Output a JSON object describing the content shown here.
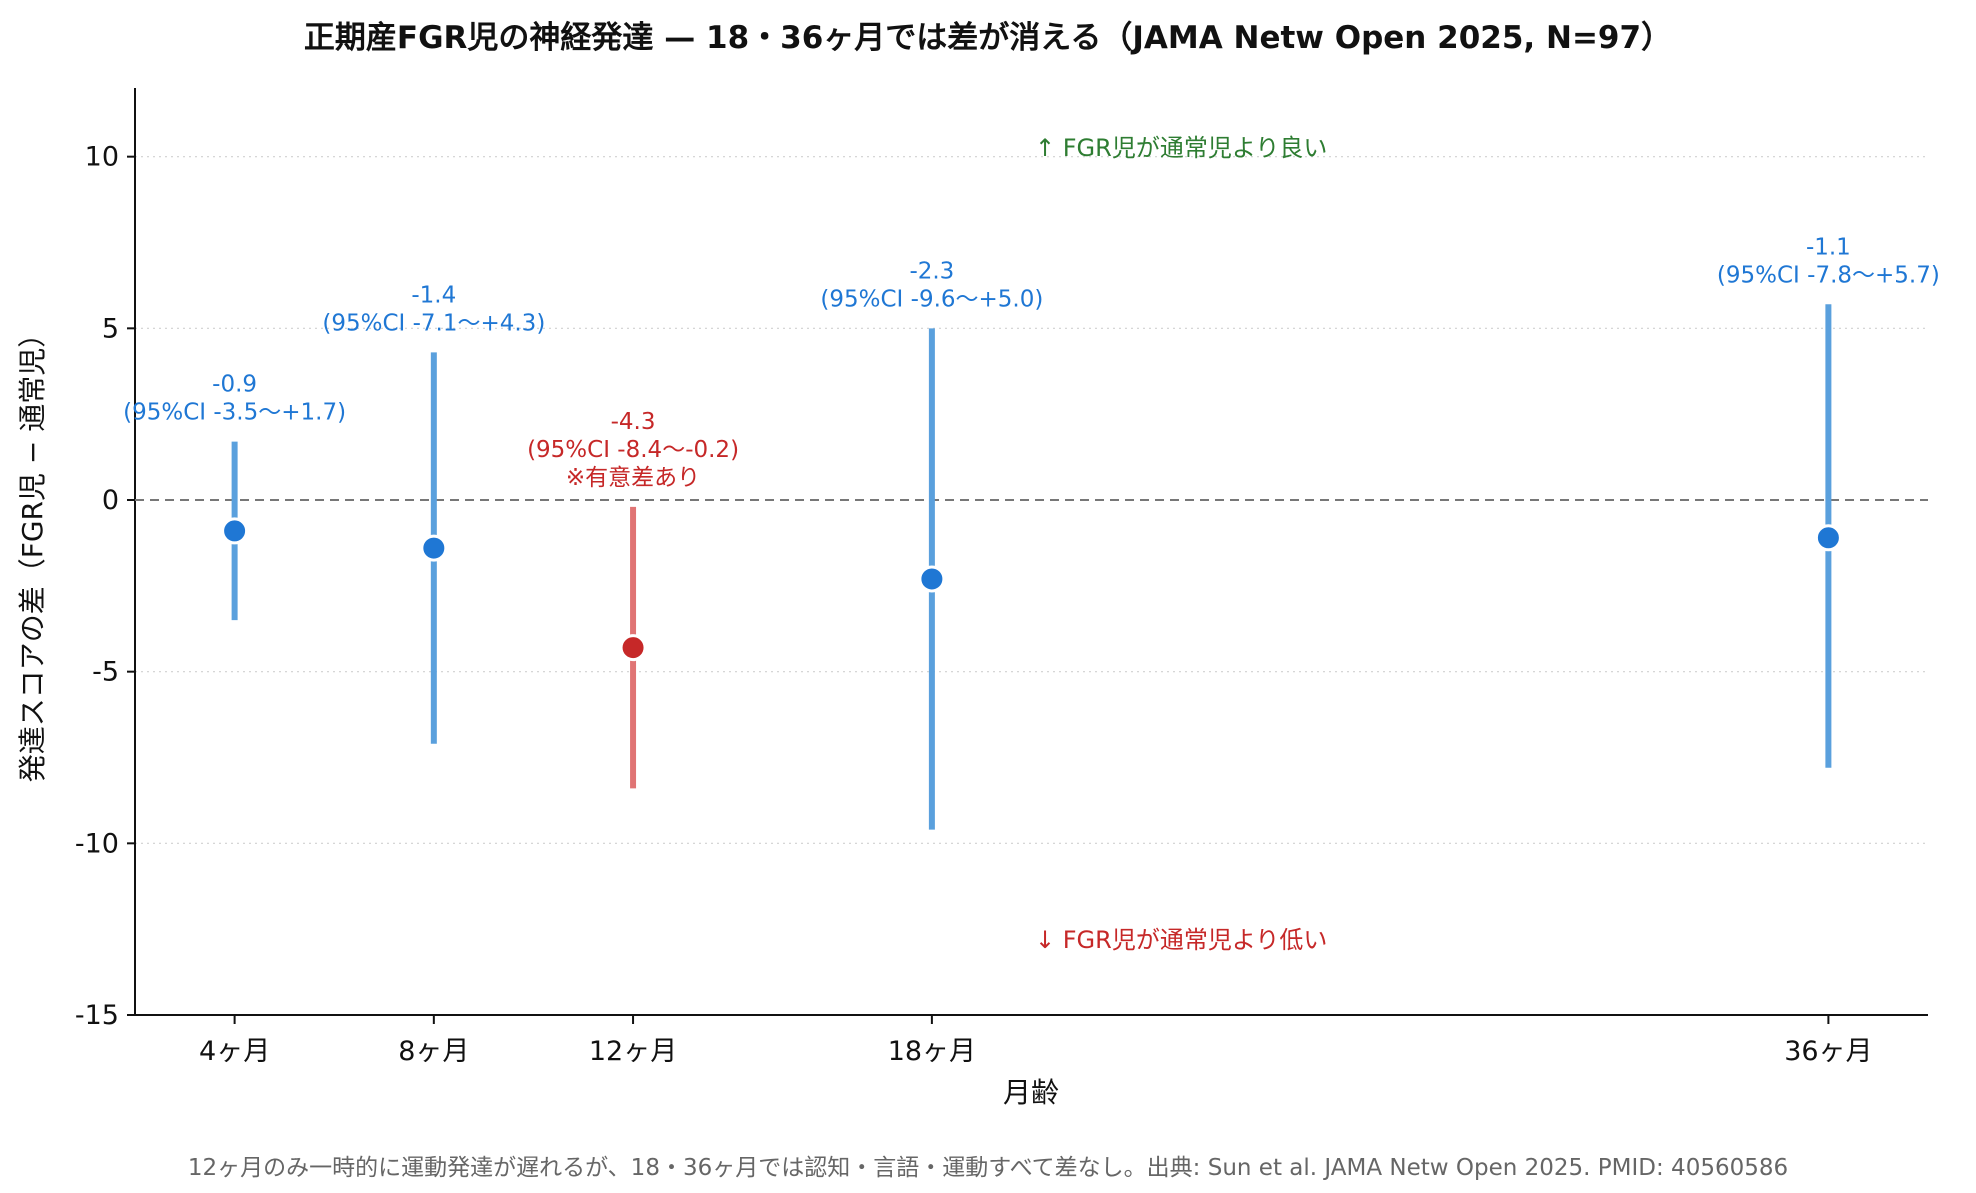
{
  "colors": {
    "normal": "#1f77d4",
    "normal_ci": "#5aa0dd",
    "significant": "#c62828",
    "significant_ci": "#e07474",
    "better": "#2e7d32",
    "worse": "#c62828",
    "zero_line": "#777777",
    "grid": "#d0d0d0",
    "caption": "#666666"
  },
  "chart_data": {
    "type": "errorbar",
    "title": "正期産FGR児の神経発達 — 18・36ヶ月では差が消える（JAMA Netw Open 2025, N=97）",
    "xlabel": "月齢",
    "ylabel": "発達スコアの差（FGR児 − 通常児）",
    "ylim": [
      -15,
      12
    ],
    "yticks": [
      {
        "value": 10,
        "label": "10"
      },
      {
        "value": 5,
        "label": "5"
      },
      {
        "value": 0,
        "label": "0"
      },
      {
        "value": -5,
        "label": "-5"
      },
      {
        "value": -10,
        "label": "-10"
      },
      {
        "value": -15,
        "label": "-15"
      }
    ],
    "xlim": [
      2,
      38
    ],
    "grid": true,
    "reference_line": 0,
    "points": [
      {
        "x": 4,
        "x_label": "4ヶ月",
        "estimate": -0.9,
        "ci_low": -3.5,
        "ci_high": 1.7,
        "value_label": "-0.9",
        "ci_label": "(95%CI -3.5〜+1.7)",
        "significant": false,
        "note": ""
      },
      {
        "x": 8,
        "x_label": "8ヶ月",
        "estimate": -1.4,
        "ci_low": -7.1,
        "ci_high": 4.3,
        "value_label": "-1.4",
        "ci_label": "(95%CI -7.1〜+4.3)",
        "significant": false,
        "note": ""
      },
      {
        "x": 12,
        "x_label": "12ヶ月",
        "estimate": -4.3,
        "ci_low": -8.4,
        "ci_high": -0.2,
        "value_label": "-4.3",
        "ci_label": "(95%CI -8.4〜-0.2)",
        "significant": true,
        "note": "※有意差あり"
      },
      {
        "x": 18,
        "x_label": "18ヶ月",
        "estimate": -2.3,
        "ci_low": -9.6,
        "ci_high": 5.0,
        "value_label": "-2.3",
        "ci_label": "(95%CI -9.6〜+5.0)",
        "significant": false,
        "note": ""
      },
      {
        "x": 36,
        "x_label": "36ヶ月",
        "estimate": -1.1,
        "ci_low": -7.8,
        "ci_high": 5.7,
        "value_label": "-1.1",
        "ci_label": "(95%CI -7.8〜+5.7)",
        "significant": false,
        "note": ""
      }
    ],
    "annotations": {
      "better": "↑ FGR児が通常児より良い",
      "worse": "↓ FGR児が通常児より低い"
    },
    "caption": "12ヶ月のみ一時的に運動発達が遅れるが、18・36ヶ月では認知・言語・運動すべて差なし。出典: Sun et al. JAMA Netw Open 2025. PMID: 40560586"
  }
}
